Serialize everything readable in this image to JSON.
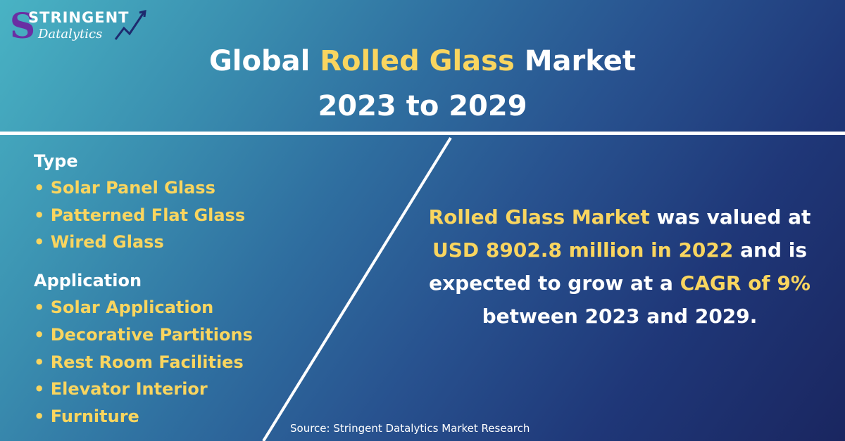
{
  "logo": {
    "brand": "STRINGENT",
    "sub": "Datalytics",
    "colors": {
      "s_letter": "#6a2fa3",
      "text": "#ffffff"
    }
  },
  "title": {
    "prefix": "Global ",
    "highlight": "Rolled Glass",
    "suffix": " Market",
    "line2": "2023 to 2029"
  },
  "segments": {
    "type": {
      "heading": "Type",
      "items": [
        "• Solar Panel Glass",
        "• Patterned Flat Glass",
        "• Wired Glass"
      ]
    },
    "application": {
      "heading": "Application",
      "items": [
        "• Solar Application",
        "• Decorative Partitions",
        "• Rest Room Facilities",
        "• Elevator Interior",
        "• Furniture"
      ]
    }
  },
  "summary": {
    "h1": "Rolled Glass Market",
    "t1": " was valued at ",
    "h2": "USD 8902.8 million in 2022",
    "t2": " and is expected to grow at a ",
    "h3": "CAGR of 9%",
    "t3": " between 2023 and 2029."
  },
  "source": "Source: Stringent Datalytics Market Research",
  "colors": {
    "highlight": "#f9d55f",
    "text": "#ffffff",
    "bg_start": "#49b3c4",
    "bg_end": "#1a2660"
  }
}
